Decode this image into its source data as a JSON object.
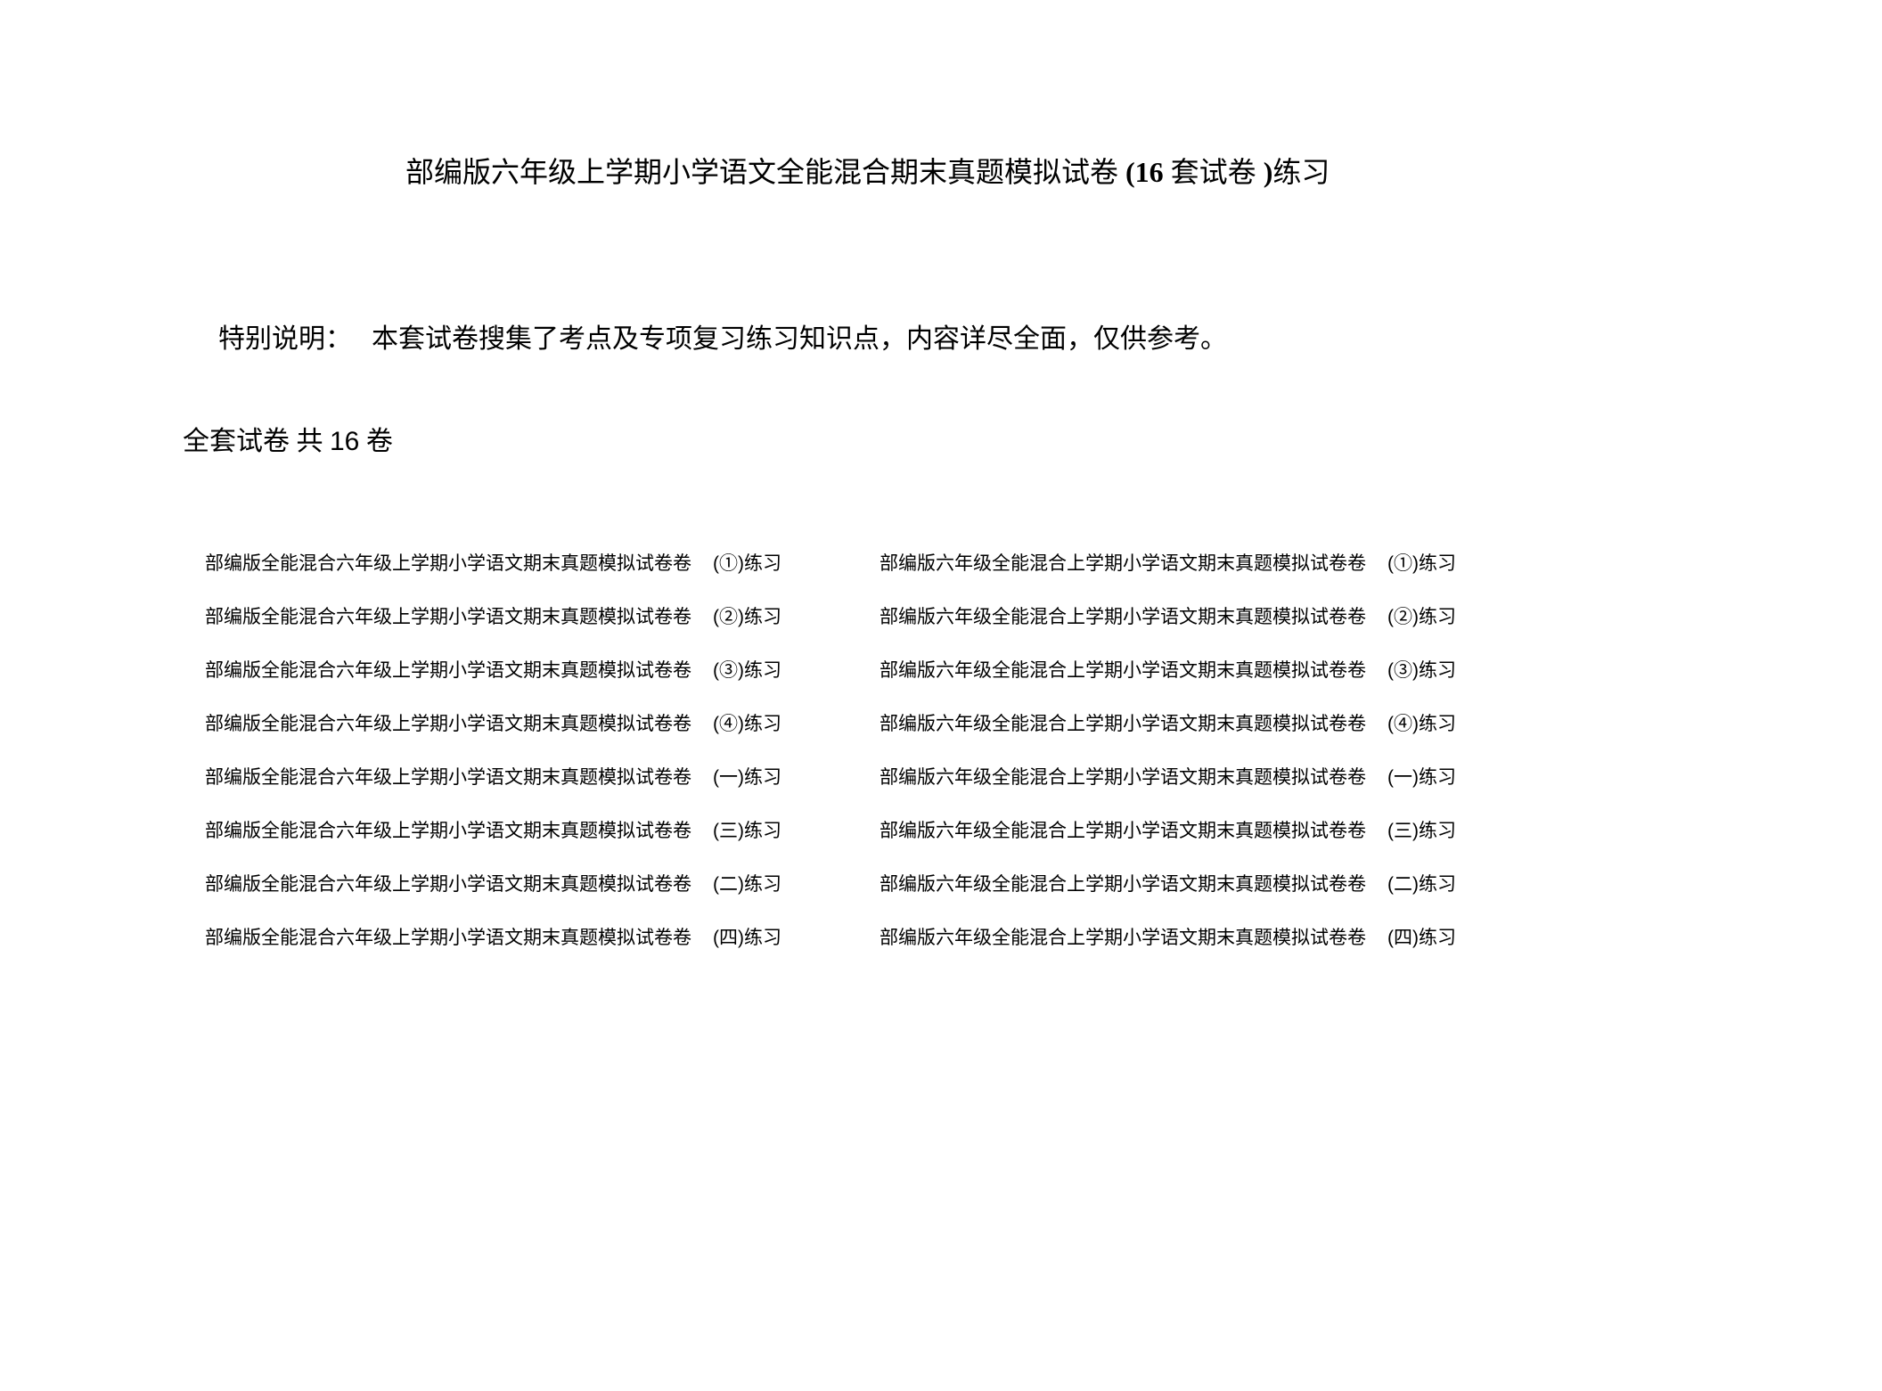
{
  "title": {
    "main": "部编版六年级上学期小学语文全能混合期末真题模拟试卷",
    "paren_open": " (",
    "count": "16",
    "unit": " 套试卷 ",
    "paren_close": ")",
    "suffix": "练习"
  },
  "note": {
    "label": "特别说明：",
    "text": "本套试卷搜集了考点及专项复习练习知识点，内容详尽全面，仅供参考。"
  },
  "subtitle": {
    "prefix": "全套试卷 共 ",
    "count": "16",
    "suffix": " 卷"
  },
  "table": {
    "left": {
      "name": "部编版全能混合六年级上学期小学语文期末真题模拟试卷卷",
      "suffixes": [
        "(①)练习",
        "(②)练习",
        "(③)练习",
        "(④)练习",
        "(一)练习",
        "(三)练习",
        "(二)练习",
        "(四)练习"
      ]
    },
    "right": {
      "name": "部编版六年级全能混合上学期小学语文期末真题模拟试卷卷",
      "suffixes": [
        "(①)练习",
        "(②)练习",
        "(③)练习",
        "(④)练习",
        "(一)练习",
        "(三)练习",
        "(二)练习",
        "(四)练习"
      ]
    }
  },
  "colors": {
    "background": "#ffffff",
    "text": "#000000"
  },
  "typography": {
    "title_fontsize": 32,
    "note_fontsize": 30,
    "subtitle_fontsize": 30,
    "table_fontsize": 21
  }
}
